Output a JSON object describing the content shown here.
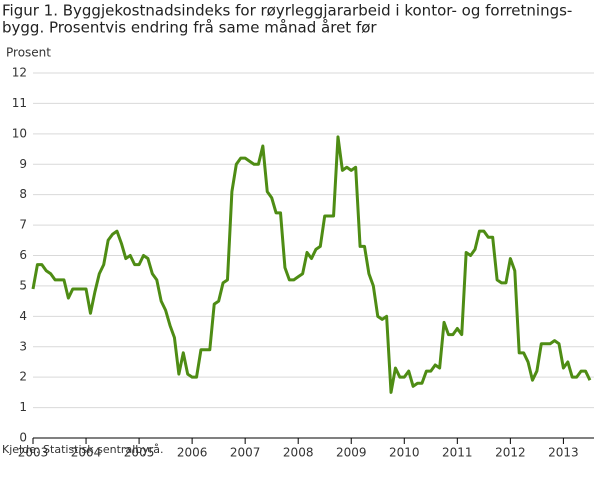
{
  "chart_data": {
    "type": "line",
    "title": [
      "Figur 1. Byggjekostnadsindeks for røyrleggjararbeid i kontor- og forretnings-",
      "bygg. Prosentvis endring frå same månad året før"
    ],
    "ylabel": "Prosent",
    "source": "Kjelde: Statistisk sentralbyrå.",
    "categories": [
      "2003",
      null,
      null,
      null,
      null,
      null,
      null,
      null,
      null,
      null,
      null,
      null,
      "2004",
      null,
      null,
      null,
      null,
      null,
      null,
      null,
      null,
      null,
      null,
      null,
      "2005",
      null,
      null,
      null,
      null,
      null,
      null,
      null,
      null,
      null,
      null,
      null,
      "2006",
      null,
      null,
      null,
      null,
      null,
      null,
      null,
      null,
      null,
      null,
      null,
      "2007",
      null,
      null,
      null,
      null,
      null,
      null,
      null,
      null,
      null,
      null,
      null,
      "2008",
      null,
      null,
      null,
      null,
      null,
      null,
      null,
      null,
      null,
      null,
      null,
      "2009",
      null,
      null,
      null,
      null,
      null,
      null,
      null,
      null,
      null,
      null,
      null,
      "2010",
      null,
      null,
      null,
      null,
      null,
      null,
      null,
      null,
      null,
      null,
      null,
      "2011",
      null,
      null,
      null,
      null,
      null,
      null,
      null,
      null,
      null,
      null,
      null,
      "2012",
      null,
      null,
      null,
      null,
      null,
      null,
      null,
      null,
      null,
      null,
      null,
      "2013",
      null,
      null,
      null,
      null,
      null,
      null
    ],
    "values": [
      4.9,
      5.7,
      5.7,
      5.5,
      5.4,
      5.2,
      5.2,
      5.2,
      4.6,
      4.9,
      4.9,
      4.9,
      4.9,
      4.1,
      4.8,
      5.4,
      5.7,
      6.5,
      6.7,
      6.8,
      6.4,
      5.9,
      6.0,
      5.7,
      5.7,
      6.0,
      5.9,
      5.4,
      5.2,
      4.5,
      4.2,
      3.7,
      3.3,
      2.1,
      2.8,
      2.1,
      2.0,
      2.0,
      2.9,
      2.9,
      2.9,
      4.4,
      4.5,
      5.1,
      5.2,
      8.1,
      9.0,
      9.2,
      9.2,
      9.1,
      9.0,
      9.0,
      9.6,
      8.1,
      7.9,
      7.4,
      7.4,
      5.6,
      5.2,
      5.2,
      5.3,
      5.4,
      6.1,
      5.9,
      6.2,
      6.3,
      7.3,
      7.3,
      7.3,
      9.9,
      8.8,
      8.9,
      8.8,
      8.9,
      6.3,
      6.3,
      5.4,
      5.0,
      4.0,
      3.9,
      4.0,
      1.5,
      2.3,
      2.0,
      2.0,
      2.2,
      1.7,
      1.8,
      1.8,
      2.2,
      2.2,
      2.4,
      2.3,
      3.8,
      3.4,
      3.4,
      3.6,
      3.4,
      6.1,
      6.0,
      6.2,
      6.8,
      6.8,
      6.6,
      6.6,
      5.2,
      5.1,
      5.1,
      5.9,
      5.5,
      2.8,
      2.8,
      2.5,
      1.9,
      2.2,
      3.1,
      3.1,
      3.1,
      3.2,
      3.1,
      2.3,
      2.5,
      2.0,
      2.0,
      2.2,
      2.2,
      1.9
    ],
    "color": "#4e8c14",
    "ylim": [
      0,
      12
    ],
    "yticks": [
      0,
      1,
      2,
      3,
      4,
      5,
      6,
      7,
      8,
      9,
      10,
      11,
      12
    ],
    "grid": true
  }
}
